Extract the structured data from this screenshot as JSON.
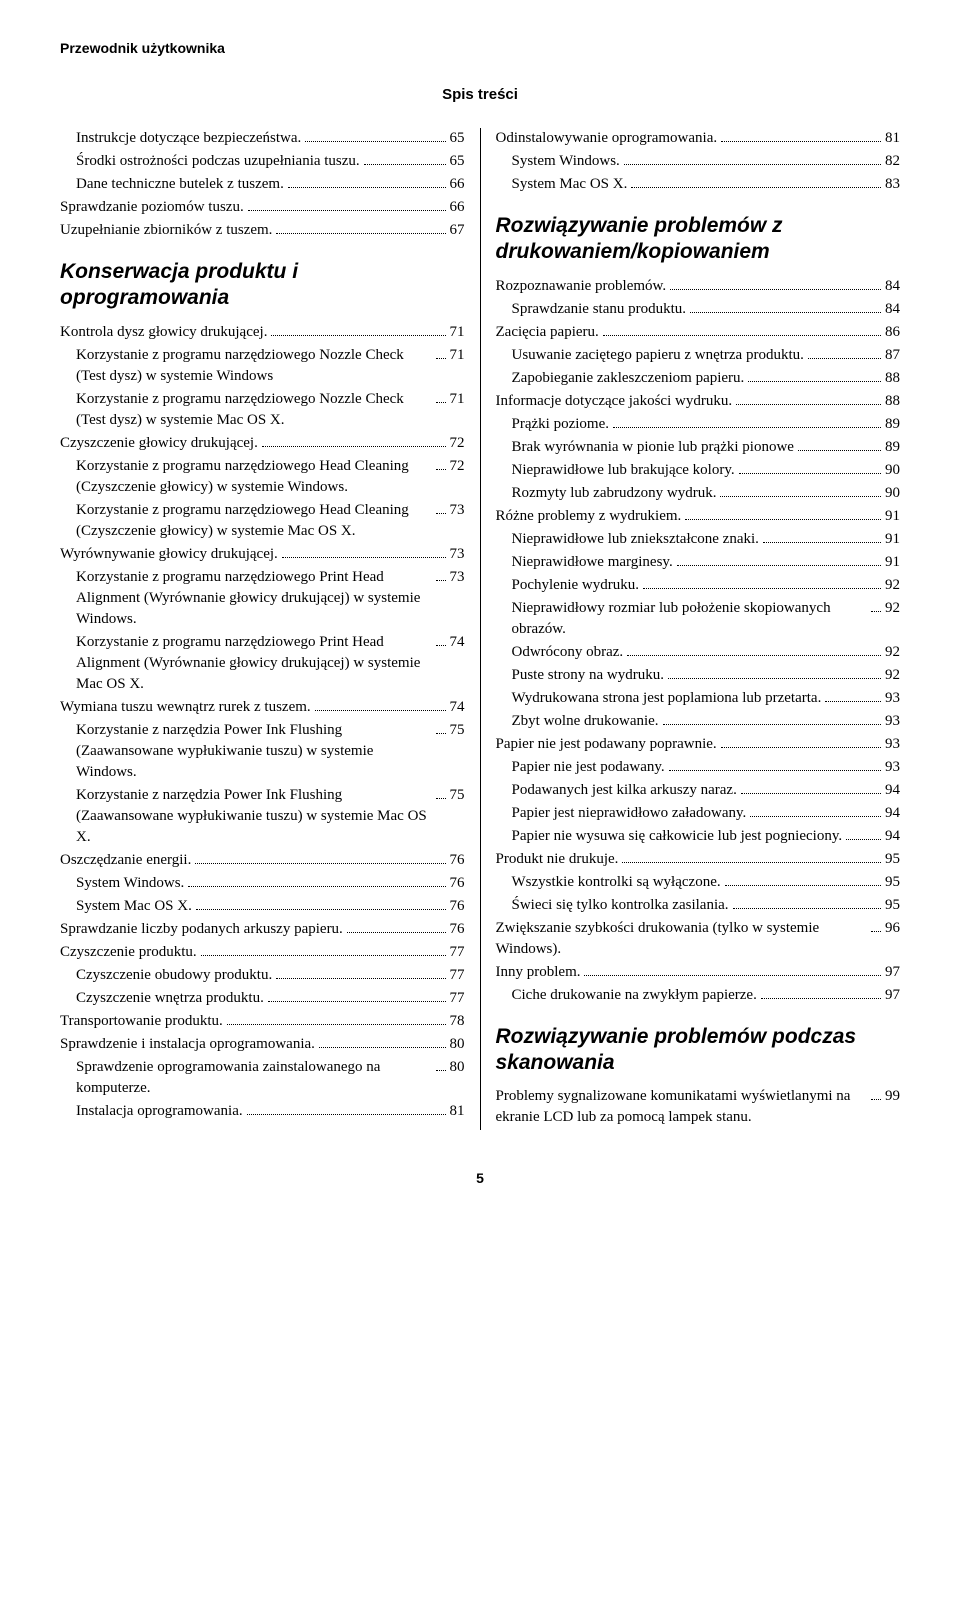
{
  "header": "Przewodnik użytkownika",
  "title": "Spis treści",
  "page_number": "5",
  "left": [
    {
      "type": "item",
      "level": 1,
      "text": "Instrukcje dotyczące bezpieczeństwa.",
      "page": "65"
    },
    {
      "type": "item",
      "level": 1,
      "text": "Środki ostrożności podczas uzupełniania tuszu.",
      "page": "65"
    },
    {
      "type": "item",
      "level": 1,
      "text": "Dane techniczne butelek z tuszem.",
      "page": "66"
    },
    {
      "type": "item",
      "level": 0,
      "text": "Sprawdzanie poziomów tuszu.",
      "page": "66"
    },
    {
      "type": "item",
      "level": 0,
      "text": "Uzupełnianie zbiorników z tuszem.",
      "page": "67"
    },
    {
      "type": "heading",
      "text": "Konserwacja produktu i oprogramowania"
    },
    {
      "type": "item",
      "level": 0,
      "text": "Kontrola dysz głowicy drukującej.",
      "page": "71"
    },
    {
      "type": "item",
      "level": 1,
      "text": "Korzystanie z programu narzędziowego Nozzle Check (Test dysz) w systemie Windows",
      "page": "71"
    },
    {
      "type": "item",
      "level": 1,
      "text": "Korzystanie z programu narzędziowego Nozzle Check (Test dysz) w systemie Mac OS X.",
      "page": "71"
    },
    {
      "type": "item",
      "level": 0,
      "text": "Czyszczenie głowicy drukującej.",
      "page": "72"
    },
    {
      "type": "item",
      "level": 1,
      "text": "Korzystanie z programu narzędziowego Head Cleaning (Czyszczenie głowicy) w systemie Windows.",
      "page": "72"
    },
    {
      "type": "item",
      "level": 1,
      "text": "Korzystanie z programu narzędziowego Head Cleaning (Czyszczenie głowicy) w systemie Mac OS X.",
      "page": "73"
    },
    {
      "type": "item",
      "level": 0,
      "text": "Wyrównywanie głowicy drukującej.",
      "page": "73"
    },
    {
      "type": "item",
      "level": 1,
      "text": "Korzystanie z programu narzędziowego Print Head Alignment (Wyrównanie głowicy drukującej) w systemie Windows.",
      "page": "73"
    },
    {
      "type": "item",
      "level": 1,
      "text": "Korzystanie z programu narzędziowego Print Head Alignment (Wyrównanie głowicy drukującej) w systemie Mac OS X.",
      "page": "74"
    },
    {
      "type": "item",
      "level": 0,
      "text": "Wymiana tuszu wewnątrz rurek z tuszem.",
      "page": "74"
    },
    {
      "type": "item",
      "level": 1,
      "text": "Korzystanie z narzędzia Power Ink Flushing (Zaawansowane wypłukiwanie tuszu) w systemie Windows.",
      "page": "75"
    },
    {
      "type": "item",
      "level": 1,
      "text": "Korzystanie z narzędzia Power Ink Flushing (Zaawansowane wypłukiwanie tuszu) w systemie Mac OS X.",
      "page": "75"
    },
    {
      "type": "item",
      "level": 0,
      "text": "Oszczędzanie energii.",
      "page": "76"
    },
    {
      "type": "item",
      "level": 1,
      "text": "System Windows.",
      "page": "76"
    },
    {
      "type": "item",
      "level": 1,
      "text": "System Mac OS X.",
      "page": "76"
    },
    {
      "type": "item",
      "level": 0,
      "text": "Sprawdzanie liczby podanych arkuszy papieru.",
      "page": "76"
    },
    {
      "type": "item",
      "level": 0,
      "text": "Czyszczenie produktu.",
      "page": "77"
    },
    {
      "type": "item",
      "level": 1,
      "text": "Czyszczenie obudowy produktu.",
      "page": "77"
    },
    {
      "type": "item",
      "level": 1,
      "text": "Czyszczenie wnętrza produktu.",
      "page": "77"
    },
    {
      "type": "item",
      "level": 0,
      "text": "Transportowanie produktu.",
      "page": "78"
    },
    {
      "type": "item",
      "level": 0,
      "text": "Sprawdzenie i instalacja oprogramowania.",
      "page": "80"
    },
    {
      "type": "item",
      "level": 1,
      "text": "Sprawdzenie oprogramowania zainstalowanego na komputerze.",
      "page": "80"
    },
    {
      "type": "item",
      "level": 1,
      "text": "Instalacja oprogramowania.",
      "page": "81"
    }
  ],
  "right": [
    {
      "type": "item",
      "level": 0,
      "text": "Odinstalowywanie oprogramowania.",
      "page": "81"
    },
    {
      "type": "item",
      "level": 1,
      "text": "System Windows.",
      "page": "82"
    },
    {
      "type": "item",
      "level": 1,
      "text": "System Mac OS X.",
      "page": "83"
    },
    {
      "type": "heading",
      "text": "Rozwiązywanie problemów z drukowaniem/kopiowaniem"
    },
    {
      "type": "item",
      "level": 0,
      "text": "Rozpoznawanie problemów.",
      "page": "84"
    },
    {
      "type": "item",
      "level": 1,
      "text": "Sprawdzanie stanu produktu.",
      "page": "84"
    },
    {
      "type": "item",
      "level": 0,
      "text": "Zacięcia papieru.",
      "page": "86"
    },
    {
      "type": "item",
      "level": 1,
      "text": "Usuwanie zaciętego papieru z wnętrza produktu.",
      "page": "87"
    },
    {
      "type": "item",
      "level": 1,
      "text": "Zapobieganie zakleszczeniom papieru.",
      "page": "88"
    },
    {
      "type": "item",
      "level": 0,
      "text": "Informacje dotyczące jakości wydruku.",
      "page": "88"
    },
    {
      "type": "item",
      "level": 1,
      "text": "Prążki poziome.",
      "page": "89"
    },
    {
      "type": "item",
      "level": 1,
      "text": "Brak wyrównania w pionie lub prążki pionowe",
      "page": "89"
    },
    {
      "type": "item",
      "level": 1,
      "text": "Nieprawidłowe lub brakujące kolory.",
      "page": "90"
    },
    {
      "type": "item",
      "level": 1,
      "text": "Rozmyty lub zabrudzony wydruk.",
      "page": "90"
    },
    {
      "type": "item",
      "level": 0,
      "text": "Różne problemy z wydrukiem.",
      "page": "91"
    },
    {
      "type": "item",
      "level": 1,
      "text": "Nieprawidłowe lub zniekształcone znaki.",
      "page": "91"
    },
    {
      "type": "item",
      "level": 1,
      "text": "Nieprawidłowe marginesy.",
      "page": "91"
    },
    {
      "type": "item",
      "level": 1,
      "text": "Pochylenie wydruku.",
      "page": "92"
    },
    {
      "type": "item",
      "level": 1,
      "text": "Nieprawidłowy rozmiar lub położenie skopiowanych obrazów.",
      "page": "92"
    },
    {
      "type": "item",
      "level": 1,
      "text": "Odwrócony obraz.",
      "page": "92"
    },
    {
      "type": "item",
      "level": 1,
      "text": "Puste strony na wydruku.",
      "page": "92"
    },
    {
      "type": "item",
      "level": 1,
      "text": "Wydrukowana strona jest poplamiona lub przetarta.",
      "page": "93"
    },
    {
      "type": "item",
      "level": 1,
      "text": "Zbyt wolne drukowanie.",
      "page": "93"
    },
    {
      "type": "item",
      "level": 0,
      "text": "Papier nie jest podawany poprawnie.",
      "page": "93"
    },
    {
      "type": "item",
      "level": 1,
      "text": "Papier nie jest podawany.",
      "page": "93"
    },
    {
      "type": "item",
      "level": 1,
      "text": "Podawanych jest kilka arkuszy naraz.",
      "page": "94"
    },
    {
      "type": "item",
      "level": 1,
      "text": "Papier jest nieprawidłowo załadowany.",
      "page": "94"
    },
    {
      "type": "item",
      "level": 1,
      "text": "Papier nie wysuwa się całkowicie lub jest pognieciony.",
      "page": "94"
    },
    {
      "type": "item",
      "level": 0,
      "text": "Produkt nie drukuje.",
      "page": "95"
    },
    {
      "type": "item",
      "level": 1,
      "text": "Wszystkie kontrolki są wyłączone.",
      "page": "95"
    },
    {
      "type": "item",
      "level": 1,
      "text": "Świeci się tylko kontrolka zasilania.",
      "page": "95"
    },
    {
      "type": "item",
      "level": 0,
      "text": "Zwiększanie szybkości drukowania (tylko w systemie Windows).",
      "page": "96"
    },
    {
      "type": "item",
      "level": 0,
      "text": "Inny problem.",
      "page": "97"
    },
    {
      "type": "item",
      "level": 1,
      "text": "Ciche drukowanie na zwykłym papierze.",
      "page": "97"
    },
    {
      "type": "heading",
      "text": "Rozwiązywanie problemów podczas skanowania"
    },
    {
      "type": "item",
      "level": 0,
      "text": "Problemy sygnalizowane komunikatami wyświetlanymi na ekranie LCD lub za pomocą lampek stanu.",
      "page": "99"
    }
  ]
}
